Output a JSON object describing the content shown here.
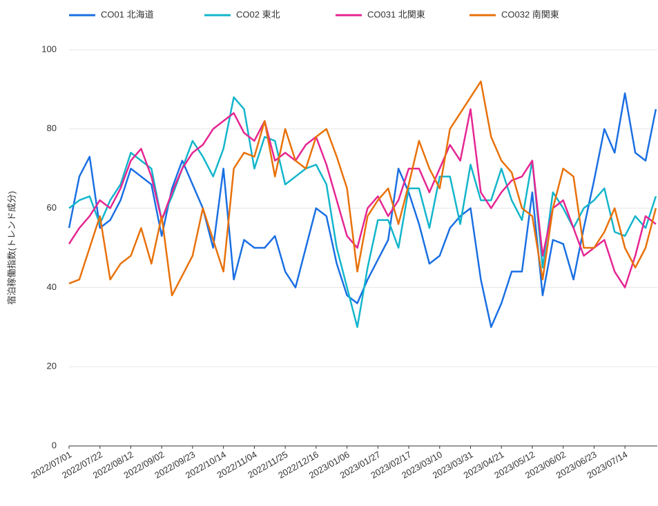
{
  "chart_data": {
    "type": "line",
    "y_label": "宿泊稼働指数(トレンド成分)",
    "x": [
      "2022/07/01",
      "2022/07/08",
      "2022/07/15",
      "2022/07/22",
      "2022/07/29",
      "2022/08/05",
      "2022/08/12",
      "2022/08/19",
      "2022/08/26",
      "2022/09/02",
      "2022/09/09",
      "2022/09/16",
      "2022/09/23",
      "2022/09/30",
      "2022/10/07",
      "2022/10/14",
      "2022/10/21",
      "2022/10/28",
      "2022/11/04",
      "2022/11/11",
      "2022/11/18",
      "2022/11/25",
      "2022/12/02",
      "2022/12/09",
      "2022/12/16",
      "2022/12/23",
      "2022/12/30",
      "2023/01/06",
      "2023/01/13",
      "2023/01/20",
      "2023/01/27",
      "2023/02/03",
      "2023/02/10",
      "2023/02/17",
      "2023/02/24",
      "2023/03/03",
      "2023/03/10",
      "2023/03/17",
      "2023/03/24",
      "2023/03/31",
      "2023/04/07",
      "2023/04/14",
      "2023/04/21",
      "2023/04/28",
      "2023/05/05",
      "2023/05/12",
      "2023/05/19",
      "2023/05/26",
      "2023/06/02",
      "2023/06/09",
      "2023/06/16",
      "2023/06/23",
      "2023/06/30",
      "2023/07/07",
      "2023/07/14",
      "2023/07/21",
      "2023/07/28",
      "2023/08/04"
    ],
    "series": [
      {
        "name": "CO01 北海道",
        "color": "#1a6fe3",
        "values": [
          55,
          68,
          73,
          55,
          57,
          62,
          70,
          68,
          66,
          53,
          65,
          72,
          66,
          60,
          50,
          70,
          42,
          52,
          50,
          50,
          53,
          44,
          40,
          50,
          60,
          58,
          46,
          38,
          36,
          42,
          47,
          52,
          70,
          64,
          56,
          46,
          48,
          55,
          58,
          60,
          42,
          30,
          36,
          44,
          44,
          64,
          38,
          52,
          51,
          42,
          55,
          67,
          80,
          74,
          89,
          74,
          72,
          85
        ]
      },
      {
        "name": "CO02 東北",
        "color": "#12b5cb",
        "values": [
          60,
          62,
          63,
          56,
          62,
          66,
          74,
          72,
          70,
          57,
          63,
          70,
          77,
          73,
          68,
          75,
          88,
          85,
          70,
          78,
          77,
          66,
          68,
          70,
          71,
          66,
          50,
          40,
          30,
          45,
          57,
          57,
          50,
          65,
          65,
          55,
          68,
          68,
          56,
          71,
          62,
          62,
          70,
          62,
          57,
          72,
          45,
          64,
          60,
          55,
          60,
          62,
          65,
          54,
          53,
          58,
          55,
          63
        ]
      },
      {
        "name": "CO031 北関東",
        "color": "#e52592",
        "values": [
          51,
          55,
          58,
          62,
          60,
          65,
          72,
          75,
          68,
          57,
          64,
          70,
          74,
          76,
          80,
          82,
          84,
          79,
          77,
          82,
          72,
          74,
          72,
          76,
          78,
          71,
          62,
          53,
          50,
          60,
          63,
          58,
          62,
          70,
          70,
          64,
          70,
          76,
          72,
          85,
          64,
          60,
          64,
          67,
          68,
          72,
          48,
          60,
          62,
          55,
          48,
          50,
          52,
          44,
          40,
          48,
          58,
          56
        ]
      },
      {
        "name": "CO032 南関東",
        "color": "#e8710a",
        "values": [
          41,
          42,
          50,
          58,
          42,
          46,
          48,
          55,
          46,
          58,
          38,
          43,
          48,
          60,
          52,
          44,
          70,
          74,
          73,
          82,
          68,
          80,
          72,
          70,
          78,
          80,
          73,
          65,
          44,
          58,
          62,
          65,
          56,
          66,
          77,
          70,
          65,
          80,
          84,
          88,
          92,
          78,
          72,
          69,
          60,
          58,
          42,
          60,
          70,
          68,
          50,
          50,
          54,
          60,
          50,
          45,
          50,
          60
        ]
      }
    ],
    "xlim": [
      "2022/07/01",
      "2023/08/05"
    ],
    "xticks": [
      "2022/07/01",
      "2022/07/22",
      "2022/08/12",
      "2022/09/02",
      "2022/09/23",
      "2022/10/14",
      "2022/11/04",
      "2022/11/25",
      "2022/12/16",
      "2023/01/06",
      "2023/01/27",
      "2023/02/17",
      "2023/03/10",
      "2023/03/31",
      "2023/04/21",
      "2023/05/12",
      "2023/06/02",
      "2023/06/23",
      "2023/07/14"
    ],
    "ylim": [
      0,
      100
    ],
    "yticks": [
      0,
      20,
      40,
      60,
      80,
      100
    ],
    "grid": true,
    "legend": "top"
  }
}
